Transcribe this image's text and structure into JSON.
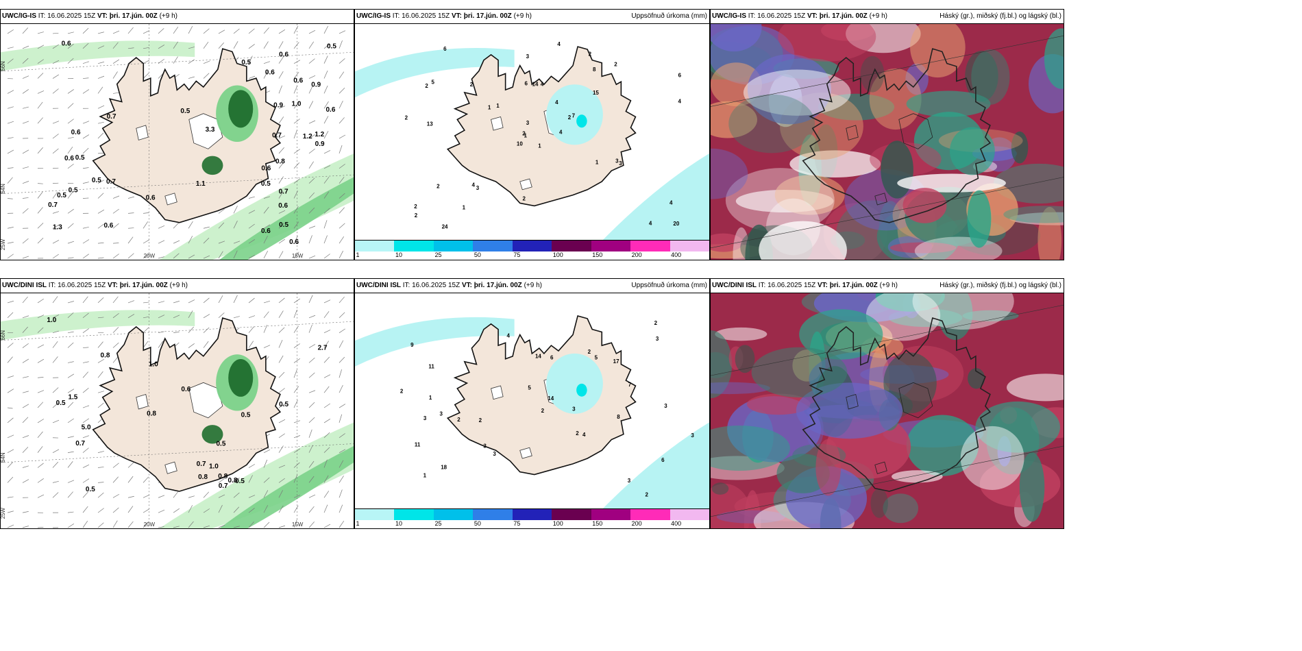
{
  "panels": [
    {
      "id": "tl",
      "header": {
        "model": "UWC/IG-IS",
        "it": "IT: 16.06.2025 15Z",
        "vt_label": "VT:",
        "vt_value": "þri. 17.jún. 00Z",
        "lead": "(+9 h)",
        "right": ""
      },
      "labels": [
        "0.6",
        "0.5",
        "0.6",
        "0.5",
        "0.5",
        "1.2",
        "0.7",
        "0.6",
        "1.0",
        "1.2",
        "3.3",
        "1.3",
        "0.6",
        "0.8",
        "0.6",
        "0.5",
        "0.7",
        "0.6",
        "0.5",
        "0.9",
        "0.5",
        "0.6",
        "0.5",
        "1.1",
        "0.6",
        "0.7",
        "0.6",
        "0.9",
        "0.6",
        "0.7",
        "0.9",
        "0.6",
        "0.7",
        "0.6",
        "0.5",
        "0.6",
        "0.5"
      ],
      "axis": {
        "lat1": "66N",
        "lat2": "64N",
        "lon1": "20W",
        "lon2": "15W",
        "left": "25W"
      }
    },
    {
      "id": "tm",
      "header": {
        "model": "UWC/IG-IS",
        "it": "IT: 16.06.2025 15Z",
        "vt_label": "VT:",
        "vt_value": "þri. 17.jún. 00Z",
        "lead": "(+9 h)",
        "right": "Uppsöfnuð úrkoma (mm)"
      },
      "labels": [
        "1",
        "2",
        "1",
        "2",
        "2",
        "3",
        "2",
        "4",
        "8",
        "4",
        "6",
        "20",
        "13",
        "6",
        "10",
        "15",
        "24",
        "6",
        "4",
        "2",
        "1",
        "2",
        "1",
        "14",
        "7",
        "3",
        "5",
        "3",
        "2",
        "1",
        "4",
        "2",
        "2",
        "3",
        "2",
        "2",
        "4",
        "4",
        "4",
        "3",
        "4",
        "1"
      ]
    },
    {
      "id": "tr",
      "header": {
        "model": "UWC/IG-IS",
        "it": "IT: 16.06.2025 15Z",
        "vt_label": "VT:",
        "vt_value": "þri. 17.jún. 00Z",
        "lead": "(+9 h)",
        "right": "Háský (gr.), miðský (fj.bl.) og lágský (bl.)"
      }
    },
    {
      "id": "bl",
      "header": {
        "model": "UWC/DINI ISL",
        "it": "IT: 16.06.2025 15Z",
        "vt_label": "VT:",
        "vt_value": "þri. 17.jún. 00Z",
        "lead": "(+9 h)",
        "right": ""
      },
      "labels": [
        "0.8",
        "2.7",
        "0.6",
        "0.5",
        "0.8",
        "1.0",
        "1.5",
        "0.8",
        "5.0",
        "0.5",
        "0.5",
        "0.7",
        "0.8",
        "0.7",
        "0.8",
        "1.0",
        "1.0",
        "0.5",
        "0.7",
        "0.5",
        "0.5"
      ],
      "axis": {
        "lat1": "66N",
        "lat2": "64N",
        "lon1": "20W",
        "lon2": "15W",
        "left": "25W"
      }
    },
    {
      "id": "bm",
      "header": {
        "model": "UWC/DINI ISL",
        "it": "IT: 16.06.2025 15Z",
        "vt_label": "VT:",
        "vt_value": "þri. 17.jún. 00Z",
        "lead": "(+9 h)",
        "right": "Uppsöfnuð úrkoma (mm)"
      },
      "labels": [
        "2",
        "3",
        "2",
        "9",
        "6",
        "11",
        "18",
        "2",
        "17",
        "14",
        "5",
        "3",
        "3",
        "4",
        "3",
        "11",
        "8",
        "14",
        "2",
        "1",
        "2",
        "6",
        "7",
        "3",
        "3",
        "1",
        "2",
        "2",
        "5",
        "3",
        "4",
        "3",
        "3",
        "2"
      ]
    },
    {
      "id": "br",
      "header": {
        "model": "UWC/DINI ISL",
        "it": "IT: 16.06.2025 15Z",
        "vt_label": "VT:",
        "vt_value": "þri. 17.jún. 00Z",
        "lead": "(+9 h)",
        "right": "Háský (gr.), miðský (fj.bl.) og lágský (bl.)"
      }
    }
  ],
  "colorbar": {
    "ticks": [
      "1",
      "10",
      "25",
      "50",
      "75",
      "100",
      "150",
      "200",
      "400"
    ],
    "colors": [
      "#b8f5f6",
      "#00e5e8",
      "#00c0ea",
      "#2f7fe8",
      "#2222b8",
      "#6a0050",
      "#a00080",
      "#ff2bb8",
      "#f2b8f0"
    ]
  },
  "colors": {
    "land": "#f3e6da",
    "precip_light": "#b7f3f3",
    "green_light": "#c8f0c8",
    "green_mid": "#7bd28a",
    "green_dark": "#1f6e2e",
    "cloud_teal": "#2aa68a",
    "cloud_dark": "#2e5a4e",
    "cloud_red": "#9c2a4a",
    "cloud_blue": "#6a66c6"
  }
}
